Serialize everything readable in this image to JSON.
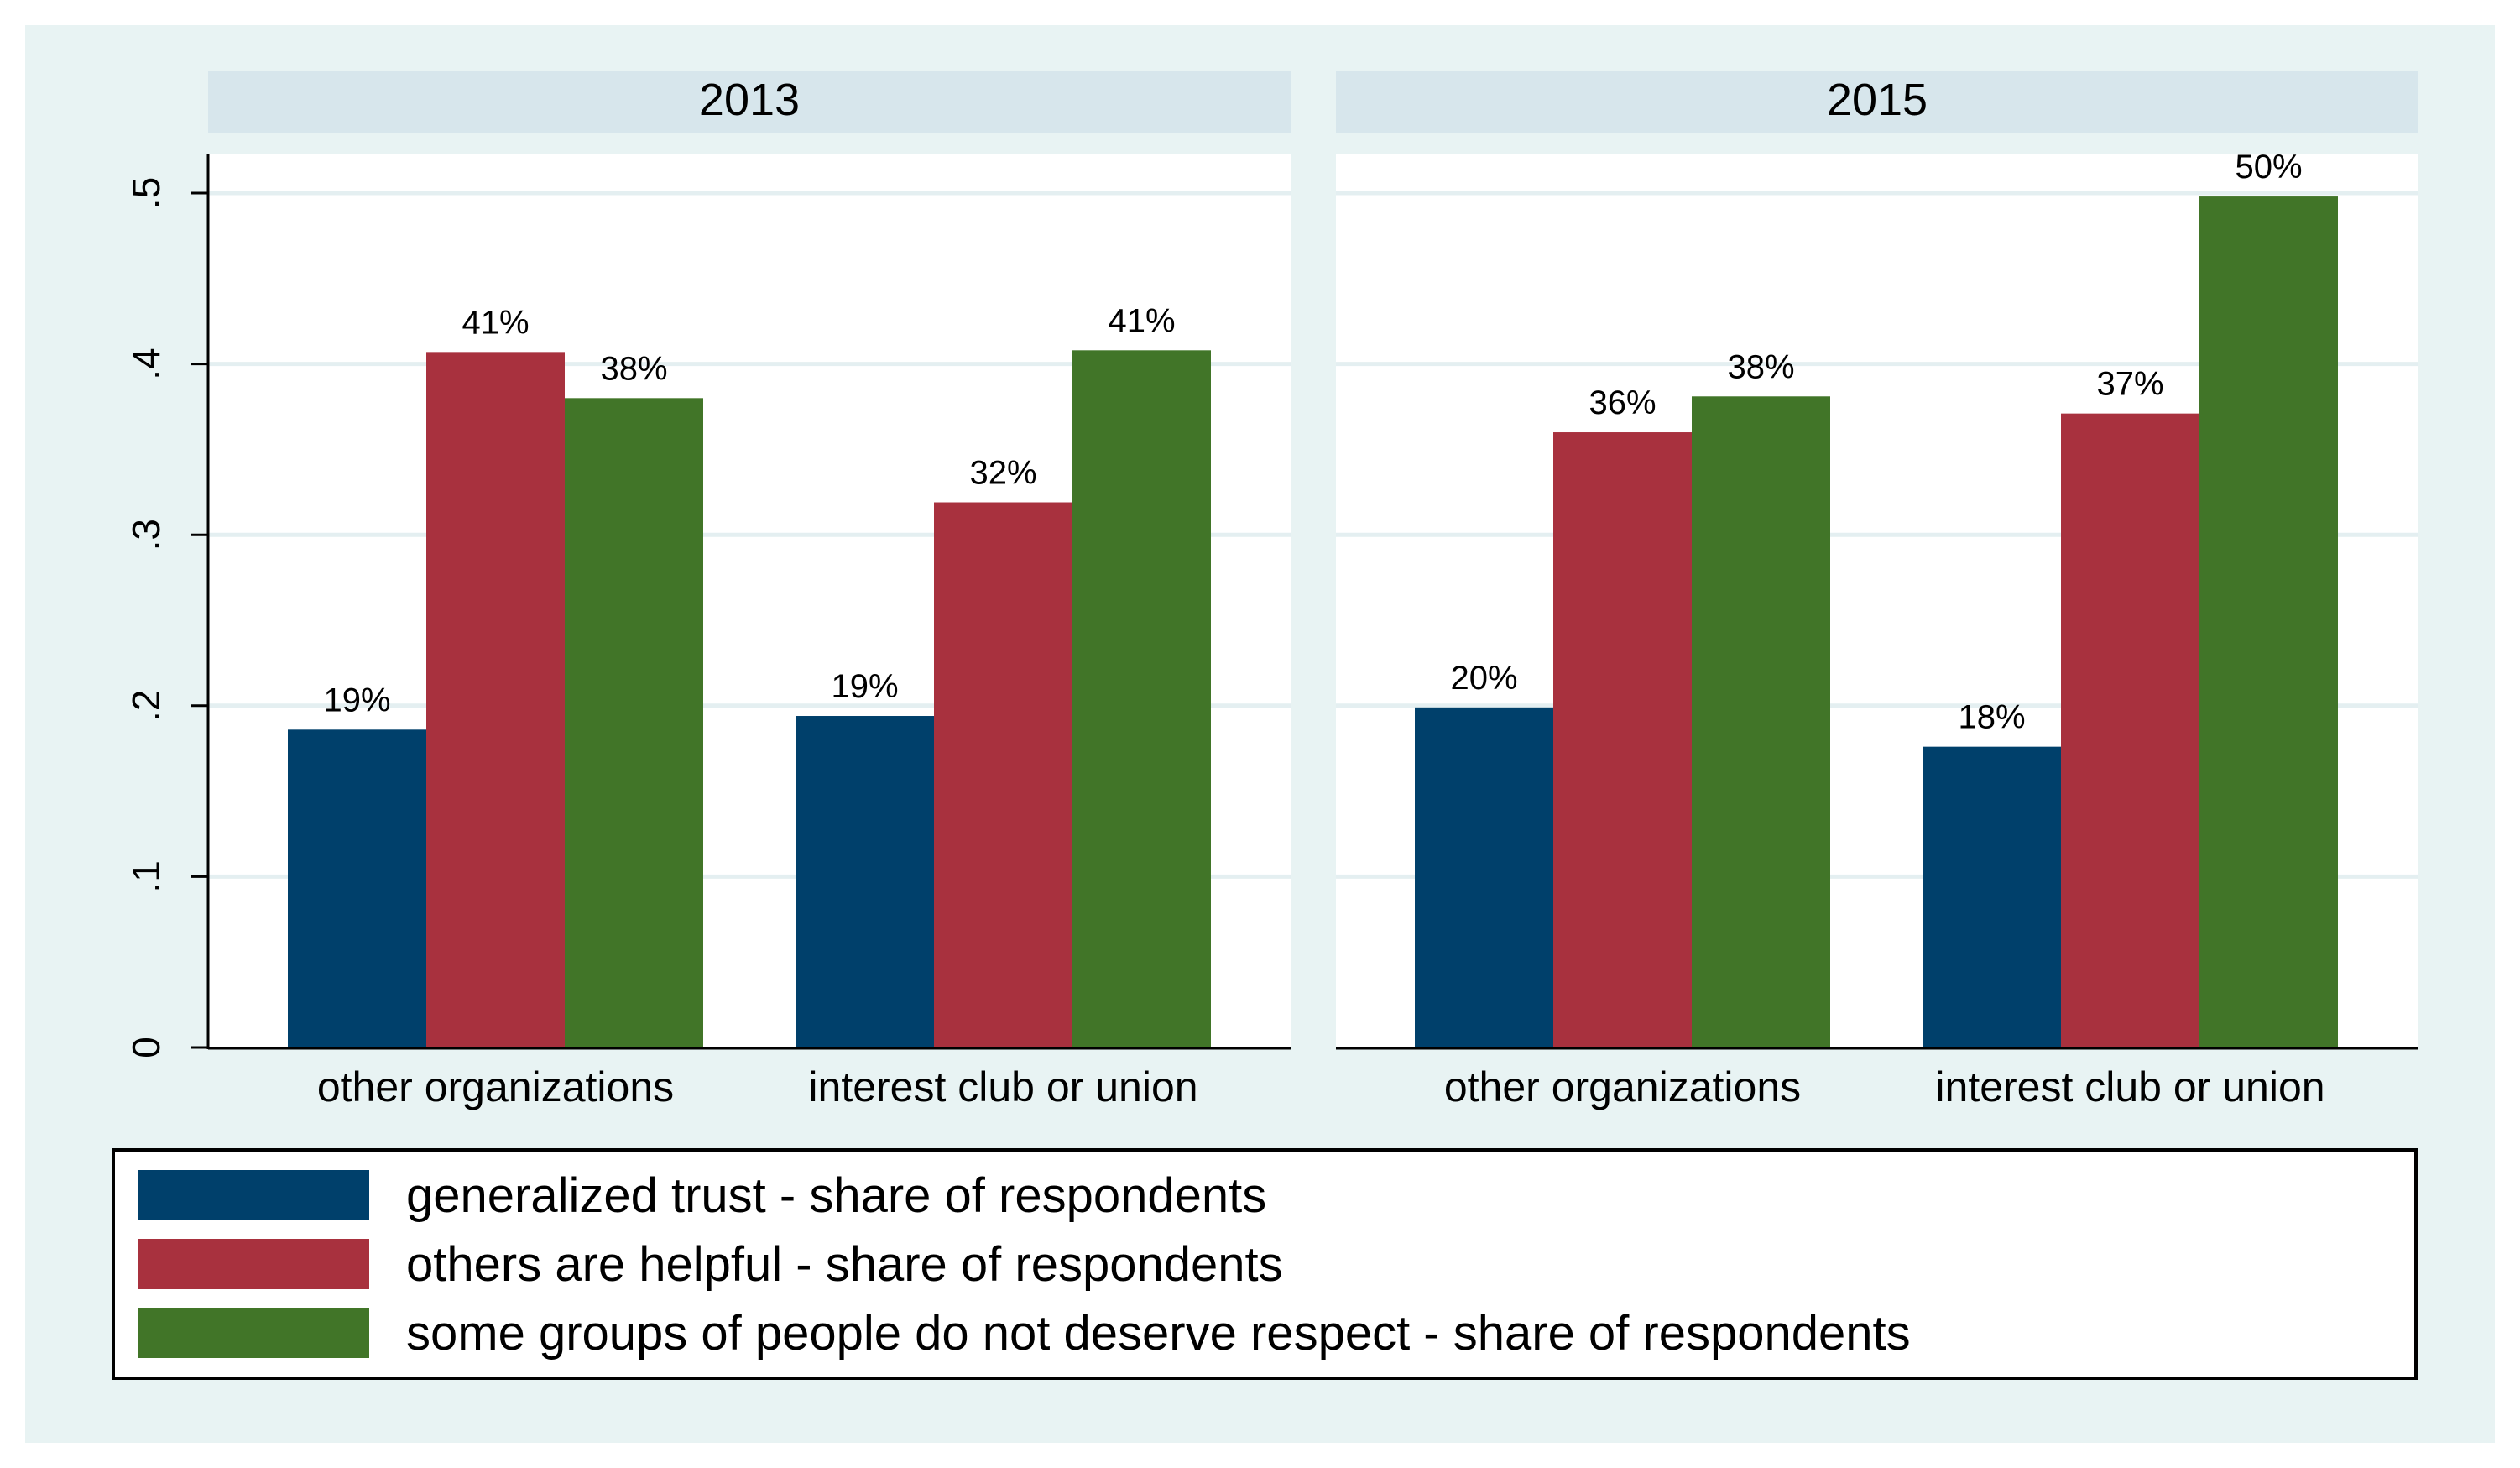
{
  "chart_data": {
    "type": "bar",
    "y_ticks": [
      0,
      0.1,
      0.2,
      0.3,
      0.4,
      0.5
    ],
    "y_tick_labels": [
      "0",
      ".1",
      ".2",
      ".3",
      ".4",
      ".5"
    ],
    "ylim": [
      0,
      0.52
    ],
    "grid": true,
    "legend_position": "bottom",
    "series": [
      {
        "name": "generalized trust - share of respondents",
        "color": "#00406b"
      },
      {
        "name": "others are helpful - share of respondents",
        "color": "#a8313e"
      },
      {
        "name": "some groups of people do not deserve respect - share of respondents",
        "color": "#417528"
      }
    ],
    "panels": [
      {
        "title": "2013",
        "categories": [
          "other organizations",
          "interest club or union"
        ],
        "values": [
          [
            0.186,
            0.194
          ],
          [
            0.407,
            0.319
          ],
          [
            0.38,
            0.408
          ]
        ],
        "labels": [
          [
            "19%",
            "19%"
          ],
          [
            "41%",
            "32%"
          ],
          [
            "38%",
            "41%"
          ]
        ]
      },
      {
        "title": "2015",
        "categories": [
          "other organizations",
          "interest club or union"
        ],
        "values": [
          [
            0.199,
            0.176
          ],
          [
            0.36,
            0.371
          ],
          [
            0.381,
            0.498
          ]
        ],
        "labels": [
          [
            "20%",
            "18%"
          ],
          [
            "36%",
            "37%"
          ],
          [
            "38%",
            "50%"
          ]
        ]
      }
    ],
    "colors": {
      "outer_background": "#e8f3f3",
      "plot_background": "#ffffff",
      "strip_background": "#d7e6ec",
      "grid": "#e4eff1",
      "axis": "#000000"
    }
  }
}
